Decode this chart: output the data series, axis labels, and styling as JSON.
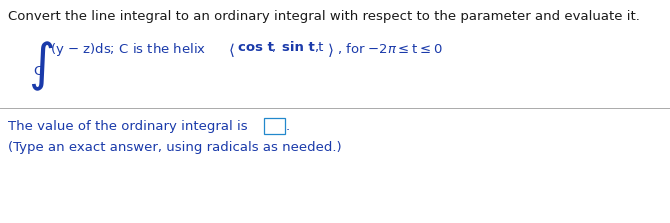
{
  "bg_color": "#ffffff",
  "black": "#1a1a1a",
  "blue": "#1a3aaa",
  "box_color": "#2288cc",
  "figsize": [
    6.7,
    2.23
  ],
  "dpi": 100,
  "line1": "Convert the line integral to an ordinary integral with respect to the parameter and evaluate it.",
  "bottom_line1_pre": "The value of the ordinary integral is",
  "bottom_line1_post": ".",
  "bottom_line2": "(Type an exact answer, using radicals as needed.)"
}
